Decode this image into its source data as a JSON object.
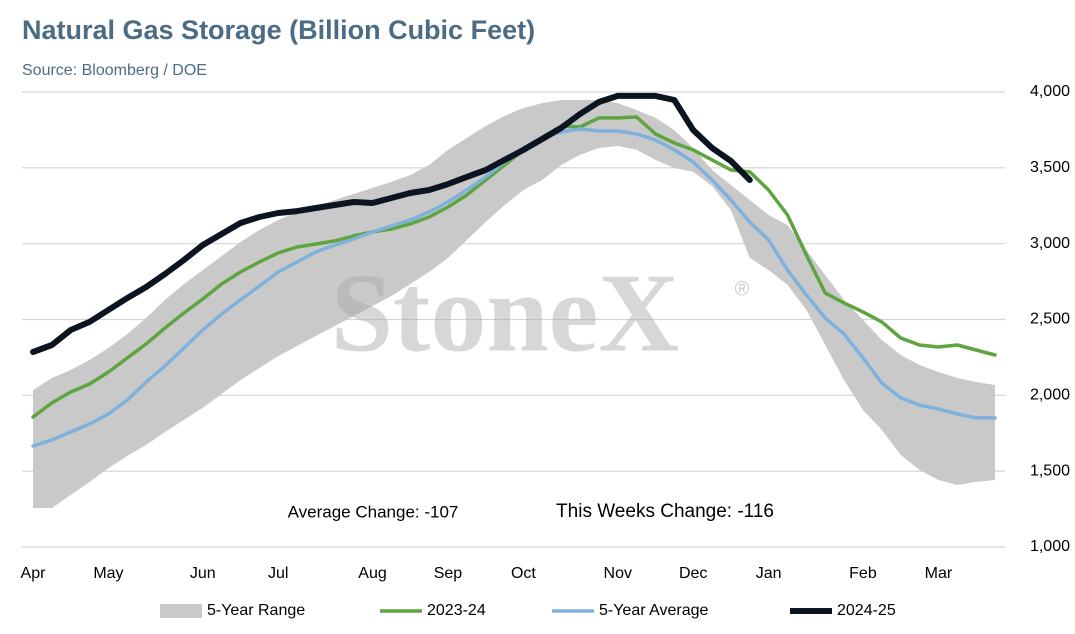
{
  "chart_data": {
    "type": "line",
    "title": "Natural Gas Storage (Billion Cubic Feet)",
    "subtitle": "Source: Bloomberg / DOE",
    "watermark": "StoneX",
    "watermark_mark": "®",
    "annotations": [
      "Average Change: -107",
      "This Weeks Change: -116"
    ],
    "categories": [
      "Apr",
      null,
      null,
      null,
      "May",
      null,
      null,
      null,
      null,
      "Jun",
      null,
      null,
      null,
      "Jul",
      null,
      null,
      null,
      null,
      "Aug",
      null,
      null,
      null,
      "Sep",
      null,
      null,
      null,
      "Oct",
      null,
      null,
      null,
      null,
      "Nov",
      null,
      null,
      null,
      "Dec",
      null,
      null,
      null,
      "Jan",
      null,
      null,
      null,
      null,
      "Feb",
      null,
      null,
      null,
      "Mar",
      null,
      null,
      null
    ],
    "ylim": [
      1000,
      4000
    ],
    "yticks": [
      {
        "value": 1000,
        "label": "1,000"
      },
      {
        "value": 1500,
        "label": "1,500"
      },
      {
        "value": 2000,
        "label": "2,000"
      },
      {
        "value": 2500,
        "label": "2,500"
      },
      {
        "value": 3000,
        "label": "3,000"
      },
      {
        "value": 3500,
        "label": "3,500"
      },
      {
        "value": 4000,
        "label": "4,000"
      }
    ],
    "y_axis_side": "right",
    "grid": true,
    "legend": "bottom",
    "series": [
      {
        "name": "5-Year Range",
        "color": "#c9c9c9",
        "kind": "range",
        "low": [
          1257,
          1257,
          1343,
          1429,
          1521,
          1600,
          1673,
          1758,
          1838,
          1917,
          2009,
          2101,
          2180,
          2259,
          2325,
          2391,
          2457,
          2523,
          2589,
          2655,
          2734,
          2813,
          2906,
          3024,
          3143,
          3255,
          3354,
          3420,
          3519,
          3585,
          3631,
          3644,
          3618,
          3552,
          3499,
          3473,
          3380,
          3222,
          2906,
          2826,
          2728,
          2563,
          2332,
          2101,
          1903,
          1772,
          1607,
          1508,
          1442,
          1409,
          1429,
          1442
        ],
        "high": [
          2035,
          2114,
          2167,
          2233,
          2312,
          2404,
          2510,
          2629,
          2734,
          2826,
          2919,
          3011,
          3090,
          3156,
          3209,
          3248,
          3288,
          3328,
          3367,
          3407,
          3453,
          3519,
          3618,
          3697,
          3776,
          3842,
          3895,
          3927,
          3947,
          3947,
          3947,
          3927,
          3881,
          3829,
          3749,
          3631,
          3486,
          3387,
          3288,
          3189,
          3123,
          2958,
          2793,
          2629,
          2497,
          2365,
          2266,
          2200,
          2154,
          2114,
          2088,
          2068
        ]
      },
      {
        "name": "2023-24",
        "color": "#5ea43f",
        "width": 3.5,
        "values": [
          1857,
          1950,
          2022,
          2075,
          2154,
          2246,
          2339,
          2444,
          2543,
          2635,
          2734,
          2813,
          2879,
          2939,
          2978,
          2998,
          3018,
          3051,
          3077,
          3097,
          3130,
          3176,
          3242,
          3321,
          3420,
          3519,
          3618,
          3703,
          3776,
          3769,
          3829,
          3829,
          3835,
          3723,
          3664,
          3618,
          3552,
          3486,
          3473,
          3354,
          3189,
          2925,
          2675,
          2609,
          2550,
          2484,
          2378,
          2332,
          2319,
          2332,
          2299,
          2266
        ]
      },
      {
        "name": "5-Year Average",
        "color": "#7fb1dd",
        "width": 3.5,
        "values": [
          1666,
          1706,
          1758,
          1811,
          1877,
          1969,
          2088,
          2194,
          2312,
          2431,
          2536,
          2629,
          2721,
          2813,
          2879,
          2945,
          2991,
          3031,
          3077,
          3117,
          3156,
          3209,
          3275,
          3354,
          3440,
          3538,
          3631,
          3703,
          3736,
          3756,
          3743,
          3743,
          3723,
          3684,
          3618,
          3538,
          3420,
          3288,
          3143,
          3024,
          2826,
          2662,
          2510,
          2404,
          2246,
          2081,
          1983,
          1936,
          1910,
          1877,
          1851,
          1851
        ]
      },
      {
        "name": "2024-25",
        "color": "#0d1421",
        "width": 6,
        "values": [
          2286,
          2332,
          2431,
          2484,
          2563,
          2642,
          2714,
          2800,
          2892,
          2991,
          3064,
          3136,
          3176,
          3202,
          3215,
          3235,
          3255,
          3275,
          3268,
          3301,
          3334,
          3354,
          3393,
          3440,
          3486,
          3552,
          3618,
          3690,
          3763,
          3855,
          3934,
          3974,
          3974,
          3974,
          3947,
          3749,
          3631,
          3545,
          3420,
          null,
          null,
          null,
          null,
          null,
          null,
          null,
          null,
          null,
          null,
          null,
          null,
          null
        ]
      }
    ]
  }
}
